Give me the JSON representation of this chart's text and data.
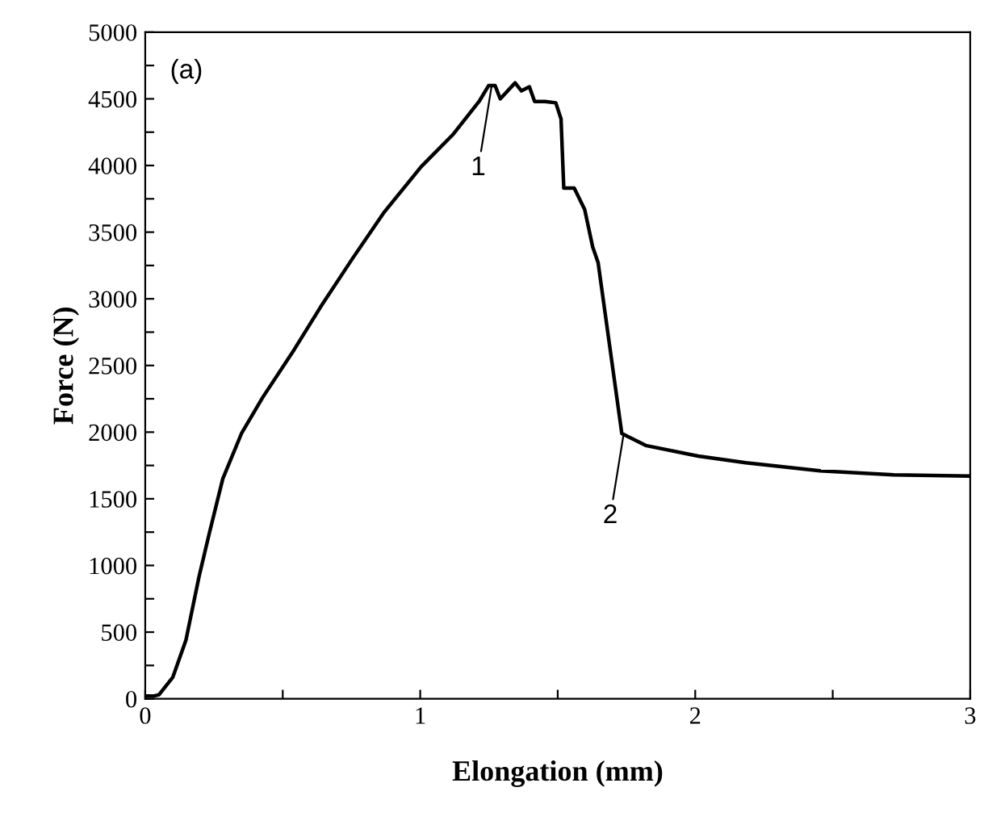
{
  "chart_data": {
    "type": "line",
    "xlabel": "Elongation (mm)",
    "ylabel": "Force (N)",
    "annotations": [
      "(a)",
      {
        "text": "1",
        "x": 1.26,
        "y": 4600
      },
      {
        "text": "2",
        "x": 1.74,
        "y": 1990
      }
    ],
    "xlim": [
      0,
      3
    ],
    "ylim": [
      0,
      5000
    ],
    "xticks": [
      0,
      {
        "value": 0.5,
        "label": null
      },
      1,
      {
        "value": 1.5,
        "label": null
      },
      2,
      {
        "value": 2.5,
        "label": null
      },
      3
    ],
    "yticks": [
      0,
      {
        "value": 250,
        "label": null
      },
      500,
      {
        "value": 750,
        "label": null
      },
      1000,
      {
        "value": 1250,
        "label": null
      },
      1500,
      {
        "value": 1750,
        "label": null
      },
      2000,
      {
        "value": 2250,
        "label": null
      },
      2500,
      {
        "value": 2750,
        "label": null
      },
      3000,
      {
        "value": 3250,
        "label": null
      },
      3500,
      {
        "value": 3750,
        "label": null
      },
      4000,
      {
        "value": 4250,
        "label": null
      },
      4500,
      {
        "value": 4750,
        "label": null
      },
      5000
    ],
    "grid": false,
    "marker": "none",
    "line_style": "solid",
    "series": [
      {
        "color": "#000000",
        "x": [
          0,
          0.03,
          0.05,
          0.1,
          0.148,
          0.196,
          0.234,
          0.282,
          0.35,
          0.427,
          0.542,
          0.638,
          0.753,
          0.869,
          1.003,
          1.118,
          1.214,
          1.249,
          1.272,
          1.291,
          1.345,
          1.368,
          1.397,
          1.416,
          1.454,
          1.493,
          1.512,
          1.522,
          1.56,
          1.598,
          1.627,
          1.647,
          1.733,
          1.752,
          1.82,
          2.011,
          2.184,
          2.454,
          2.722,
          3.0
        ],
        "values": [
          20,
          20,
          30,
          160,
          440,
          920,
          1250,
          1650,
          1990,
          2260,
          2620,
          2940,
          3300,
          3650,
          3990,
          4230,
          4480,
          4600,
          4600,
          4500,
          4620,
          4560,
          4590,
          4480,
          4480,
          4470,
          4350,
          3830,
          3830,
          3670,
          3390,
          3270,
          1990,
          1970,
          1900,
          1820,
          1770,
          1710,
          1680,
          1670
        ]
      }
    ]
  }
}
